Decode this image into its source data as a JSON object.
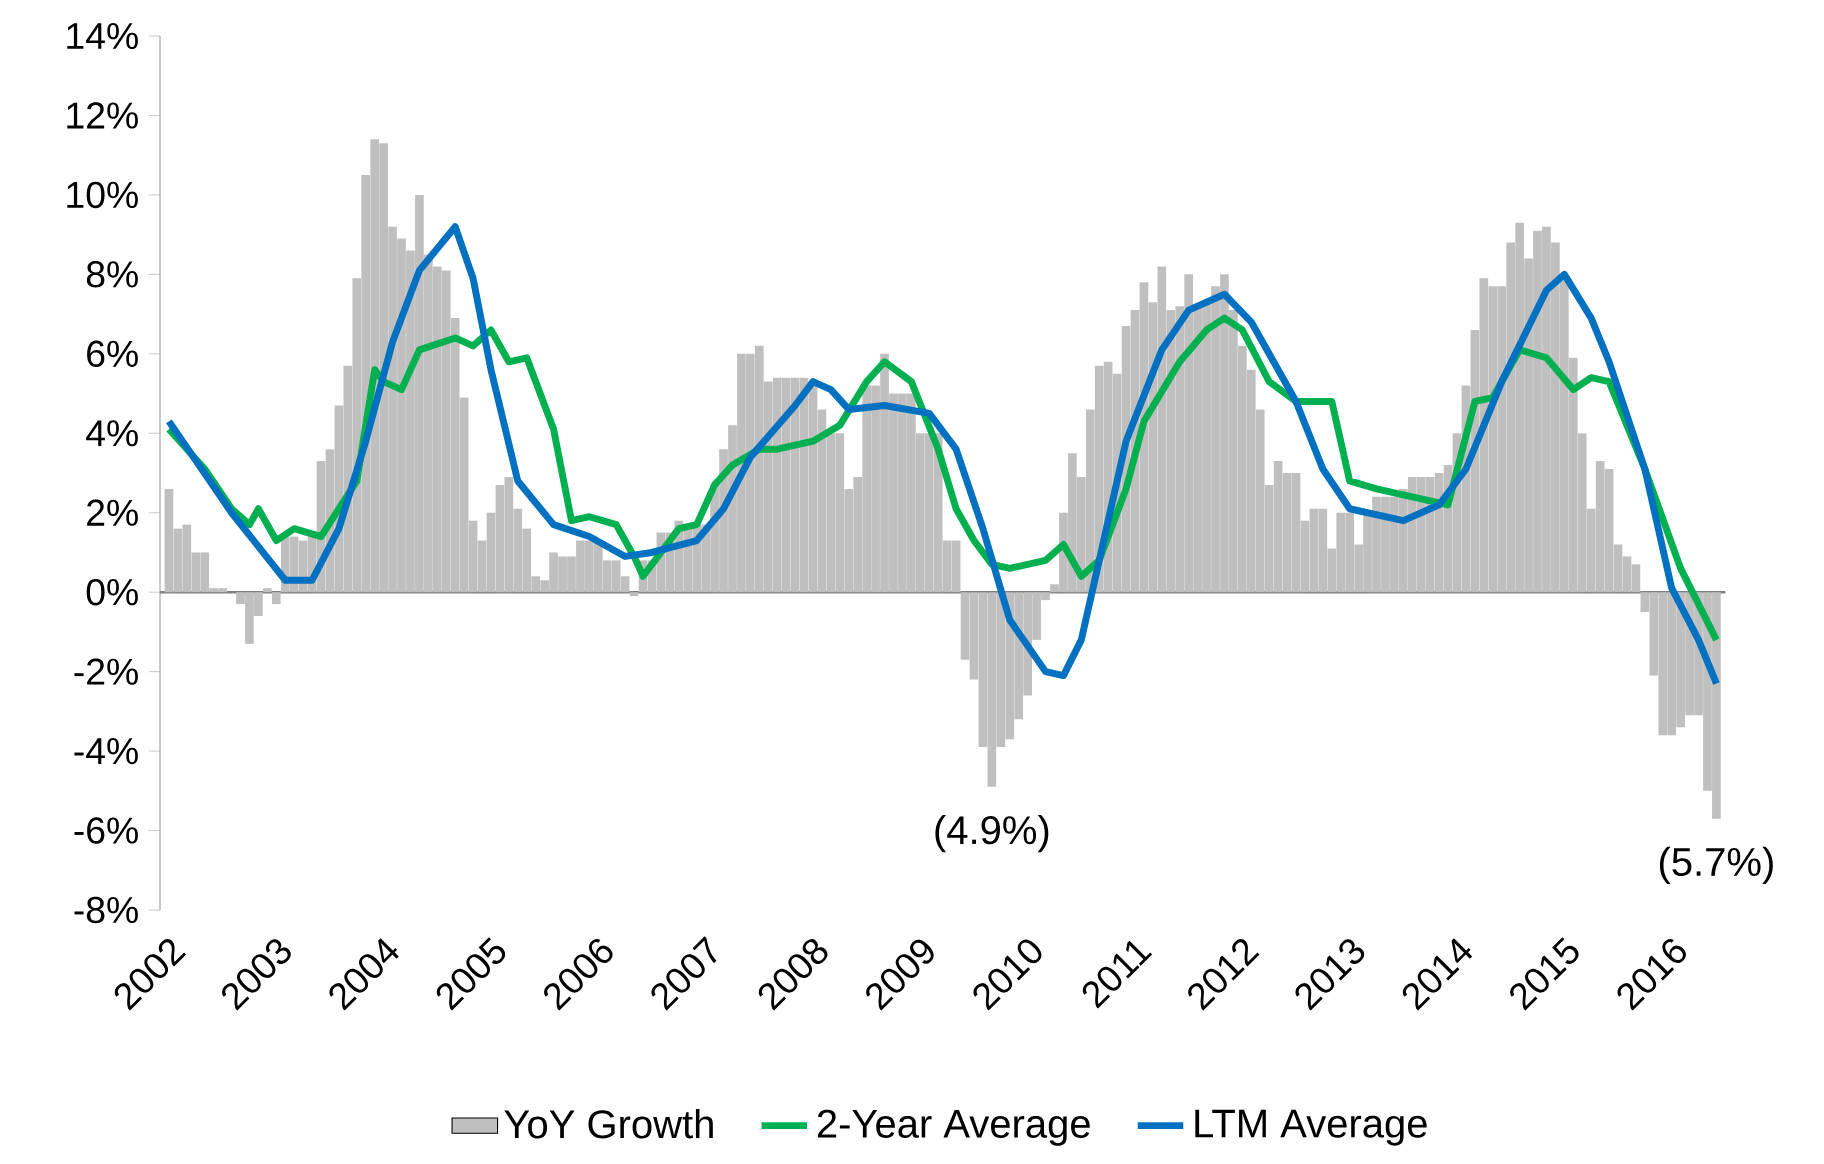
{
  "chart_data": {
    "type": "bar",
    "legend": "bottom",
    "xlim": [
      "2001-12",
      "2016-07"
    ],
    "xticks": [
      {
        "value": "2002-01",
        "label": "2002"
      },
      {
        "value": "2003-01",
        "label": "2003"
      },
      {
        "value": "2004-01",
        "label": "2004"
      },
      {
        "value": "2005-01",
        "label": "2005"
      },
      {
        "value": "2006-01",
        "label": "2006"
      },
      {
        "value": "2007-01",
        "label": "2007"
      },
      {
        "value": "2008-01",
        "label": "2008"
      },
      {
        "value": "2009-01",
        "label": "2009"
      },
      {
        "value": "2010-01",
        "label": "2010"
      },
      {
        "value": "2011-01",
        "label": "2011"
      },
      {
        "value": "2012-01",
        "label": "2012"
      },
      {
        "value": "2013-01",
        "label": "2013"
      },
      {
        "value": "2014-01",
        "label": "2014"
      },
      {
        "value": "2015-01",
        "label": "2015"
      },
      {
        "value": "2016-01",
        "label": "2016"
      }
    ],
    "ylim": [
      -8,
      14
    ],
    "yticks": [
      {
        "value": -8,
        "label": "-8%"
      },
      {
        "value": -6,
        "label": "-6%"
      },
      {
        "value": -4,
        "label": "-4%"
      },
      {
        "value": -2,
        "label": "-2%"
      },
      {
        "value": 0,
        "label": "0%"
      },
      {
        "value": 2,
        "label": "2%"
      },
      {
        "value": 4,
        "label": "4%"
      },
      {
        "value": 6,
        "label": "6%"
      },
      {
        "value": 8,
        "label": "8%"
      },
      {
        "value": 10,
        "label": "10%"
      },
      {
        "value": 12,
        "label": "12%"
      },
      {
        "value": 14,
        "label": "14%"
      }
    ],
    "ref_lines": [
      {
        "axis": "y",
        "value": 0,
        "color": "#808080"
      }
    ],
    "annotations": [
      {
        "text": "(4.9%)",
        "x": "2009-09",
        "y": -4.9
      },
      {
        "text": "(5.7%)",
        "x": "2016-06",
        "y": -5.7
      }
    ],
    "x": [
      "2002-01",
      "2002-02",
      "2002-03",
      "2002-04",
      "2002-05",
      "2002-06",
      "2002-07",
      "2002-08",
      "2002-09",
      "2002-10",
      "2002-11",
      "2002-12",
      "2003-01",
      "2003-02",
      "2003-03",
      "2003-04",
      "2003-05",
      "2003-06",
      "2003-07",
      "2003-08",
      "2003-09",
      "2003-10",
      "2003-11",
      "2003-12",
      "2004-01",
      "2004-02",
      "2004-03",
      "2004-04",
      "2004-05",
      "2004-06",
      "2004-07",
      "2004-08",
      "2004-09",
      "2004-10",
      "2004-11",
      "2004-12",
      "2005-01",
      "2005-02",
      "2005-03",
      "2005-04",
      "2005-05",
      "2005-06",
      "2005-07",
      "2005-08",
      "2005-09",
      "2005-10",
      "2005-11",
      "2005-12",
      "2006-01",
      "2006-02",
      "2006-03",
      "2006-04",
      "2006-05",
      "2006-06",
      "2006-07",
      "2006-08",
      "2006-09",
      "2006-10",
      "2006-11",
      "2006-12",
      "2007-01",
      "2007-02",
      "2007-03",
      "2007-04",
      "2007-05",
      "2007-06",
      "2007-07",
      "2007-08",
      "2007-09",
      "2007-10",
      "2007-11",
      "2007-12",
      "2008-01",
      "2008-02",
      "2008-03",
      "2008-04",
      "2008-05",
      "2008-06",
      "2008-07",
      "2008-08",
      "2008-09",
      "2008-10",
      "2008-11",
      "2008-12",
      "2009-01",
      "2009-02",
      "2009-03",
      "2009-04",
      "2009-05",
      "2009-06",
      "2009-07",
      "2009-08",
      "2009-09",
      "2009-10",
      "2009-11",
      "2009-12",
      "2010-01",
      "2010-02",
      "2010-03",
      "2010-04",
      "2010-05",
      "2010-06",
      "2010-07",
      "2010-08",
      "2010-09",
      "2010-10",
      "2010-11",
      "2010-12",
      "2011-01",
      "2011-02",
      "2011-03",
      "2011-04",
      "2011-05",
      "2011-06",
      "2011-07",
      "2011-08",
      "2011-09",
      "2011-10",
      "2011-11",
      "2011-12",
      "2012-01",
      "2012-02",
      "2012-03",
      "2012-04",
      "2012-05",
      "2012-06",
      "2012-07",
      "2012-08",
      "2012-09",
      "2012-10",
      "2012-11",
      "2012-12",
      "2013-01",
      "2013-02",
      "2013-03",
      "2013-04",
      "2013-05",
      "2013-06",
      "2013-07",
      "2013-08",
      "2013-09",
      "2013-10",
      "2013-11",
      "2013-12",
      "2014-01",
      "2014-02",
      "2014-03",
      "2014-04",
      "2014-05",
      "2014-06",
      "2014-07",
      "2014-08",
      "2014-09",
      "2014-10",
      "2014-11",
      "2014-12",
      "2015-01",
      "2015-02",
      "2015-03",
      "2015-04",
      "2015-05",
      "2015-06",
      "2015-07",
      "2015-08",
      "2015-09",
      "2015-10",
      "2015-11",
      "2015-12",
      "2016-01",
      "2016-02",
      "2016-03",
      "2016-04",
      "2016-05",
      "2016-06"
    ],
    "series": [
      {
        "name": "YoY Growth",
        "color": "#bfbfbf",
        "values": [
          2.6,
          1.6,
          1.7,
          1.0,
          1.0,
          0.1,
          0.1,
          0.0,
          -0.3,
          -1.3,
          -0.6,
          0.1,
          -0.3,
          1.4,
          1.4,
          1.3,
          1.4,
          3.3,
          3.6,
          4.7,
          5.7,
          7.9,
          10.5,
          11.4,
          11.3,
          9.2,
          8.9,
          8.6,
          10.0,
          8.5,
          8.2,
          8.1,
          6.9,
          4.9,
          1.8,
          1.3,
          2.0,
          2.7,
          2.9,
          2.1,
          1.6,
          0.4,
          0.3,
          1.0,
          0.9,
          0.9,
          1.3,
          1.3,
          1.3,
          0.8,
          0.8,
          0.4,
          -0.1,
          0.8,
          0.8,
          1.5,
          1.5,
          1.8,
          1.7,
          1.7,
          1.7,
          2.7,
          3.6,
          4.2,
          6.0,
          6.0,
          6.2,
          5.3,
          5.4,
          5.4,
          5.4,
          5.4,
          5.3,
          4.6,
          4.0,
          4.0,
          2.6,
          2.9,
          5.2,
          5.2,
          6.0,
          5.0,
          5.0,
          5.0,
          4.0,
          4.0,
          4.0,
          1.3,
          1.3,
          -1.7,
          -2.2,
          -3.9,
          -4.9,
          -3.9,
          -3.7,
          -3.2,
          -2.6,
          -1.2,
          -0.2,
          0.2,
          2.0,
          3.5,
          2.9,
          4.6,
          5.7,
          5.8,
          5.5,
          6.7,
          7.1,
          7.8,
          7.3,
          8.2,
          7.1,
          7.2,
          8.0,
          7.2,
          7.3,
          7.7,
          8.0,
          7.1,
          6.2,
          5.6,
          4.6,
          2.7,
          3.3,
          3.0,
          3.0,
          1.8,
          2.1,
          2.1,
          1.1,
          2.0,
          2.0,
          1.2,
          2.0,
          2.4,
          2.4,
          2.4,
          2.6,
          2.9,
          2.9,
          2.9,
          3.0,
          3.2,
          4.0,
          5.2,
          6.6,
          7.9,
          7.7,
          7.7,
          8.8,
          9.3,
          8.4,
          9.1,
          9.2,
          8.8,
          7.9,
          5.9,
          4.0,
          2.1,
          3.3,
          3.1,
          1.2,
          0.9,
          0.7,
          -0.5,
          -2.1,
          -3.6,
          -3.6,
          -3.4,
          -3.1,
          -3.1,
          -5.0,
          -5.7
        ]
      },
      {
        "name": "2-Year Average",
        "type": "line",
        "color": "#00b050",
        "x": [
          "2002-01",
          "2002-05",
          "2002-08",
          "2002-10",
          "2002-11",
          "2003-01",
          "2003-03",
          "2003-06",
          "2003-08",
          "2003-10",
          "2003-12",
          "2004-01",
          "2004-03",
          "2004-05",
          "2004-09",
          "2004-11",
          "2005-01",
          "2005-03",
          "2005-05",
          "2005-08",
          "2005-10",
          "2005-12",
          "2006-03",
          "2006-05",
          "2006-06",
          "2006-10",
          "2006-12",
          "2007-02",
          "2007-04",
          "2007-07",
          "2007-09",
          "2008-01",
          "2008-04",
          "2008-07",
          "2008-09",
          "2008-12",
          "2009-03",
          "2009-05",
          "2009-07",
          "2009-09",
          "2009-11",
          "2010-03",
          "2010-05",
          "2010-07",
          "2010-09",
          "2010-12",
          "2011-02",
          "2011-06",
          "2011-09",
          "2011-11",
          "2012-01",
          "2012-04",
          "2012-07",
          "2012-11",
          "2013-01",
          "2013-04",
          "2013-08",
          "2013-12",
          "2014-03",
          "2014-05",
          "2014-08",
          "2014-11",
          "2015-02",
          "2015-04",
          "2015-06",
          "2015-10",
          "2016-02",
          "2016-06"
        ],
        "values": [
          4.1,
          3.1,
          2.1,
          1.7,
          2.1,
          1.3,
          1.6,
          1.4,
          2.1,
          2.8,
          5.6,
          5.3,
          5.1,
          6.1,
          6.4,
          6.2,
          6.6,
          5.8,
          5.9,
          4.1,
          1.8,
          1.9,
          1.7,
          0.9,
          0.4,
          1.6,
          1.7,
          2.7,
          3.2,
          3.6,
          3.6,
          3.8,
          4.2,
          5.3,
          5.8,
          5.3,
          3.6,
          2.1,
          1.3,
          0.7,
          0.6,
          0.8,
          1.2,
          0.4,
          0.8,
          2.6,
          4.3,
          5.8,
          6.6,
          6.9,
          6.6,
          5.3,
          4.8,
          4.8,
          2.8,
          2.6,
          2.4,
          2.2,
          4.8,
          4.9,
          6.1,
          5.9,
          5.1,
          5.4,
          5.3,
          3.1,
          0.6,
          -1.2
        ]
      },
      {
        "name": "LTM Average",
        "type": "line",
        "color": "#0070c0",
        "x": [
          "2002-01",
          "2002-08",
          "2003-02",
          "2003-05",
          "2003-08",
          "2003-11",
          "2004-02",
          "2004-05",
          "2004-09",
          "2004-11",
          "2005-01",
          "2005-04",
          "2005-08",
          "2005-12",
          "2006-04",
          "2006-07",
          "2006-12",
          "2007-03",
          "2007-06",
          "2007-11",
          "2008-01",
          "2008-03",
          "2008-05",
          "2008-09",
          "2009-02",
          "2009-05",
          "2009-08",
          "2009-11",
          "2010-03",
          "2010-05",
          "2010-07",
          "2010-09",
          "2010-12",
          "2011-04",
          "2011-07",
          "2011-11",
          "2012-02",
          "2012-07",
          "2012-10",
          "2013-01",
          "2013-07",
          "2013-11",
          "2014-02",
          "2014-06",
          "2014-11",
          "2015-01",
          "2015-04",
          "2015-06",
          "2015-10",
          "2016-01",
          "2016-04",
          "2016-06"
        ],
        "values": [
          4.3,
          2.0,
          0.3,
          0.3,
          1.6,
          3.8,
          6.3,
          8.1,
          9.2,
          7.9,
          5.6,
          2.8,
          1.7,
          1.4,
          0.9,
          1.0,
          1.3,
          2.1,
          3.4,
          4.7,
          5.3,
          5.1,
          4.6,
          4.7,
          4.5,
          3.6,
          1.6,
          -0.7,
          -2.0,
          -2.1,
          -1.2,
          0.8,
          3.8,
          6.1,
          7.1,
          7.5,
          6.8,
          4.8,
          3.1,
          2.1,
          1.8,
          2.2,
          3.1,
          5.3,
          7.6,
          8.0,
          6.9,
          5.8,
          3.1,
          0.1,
          -1.2,
          -2.3
        ]
      }
    ]
  }
}
